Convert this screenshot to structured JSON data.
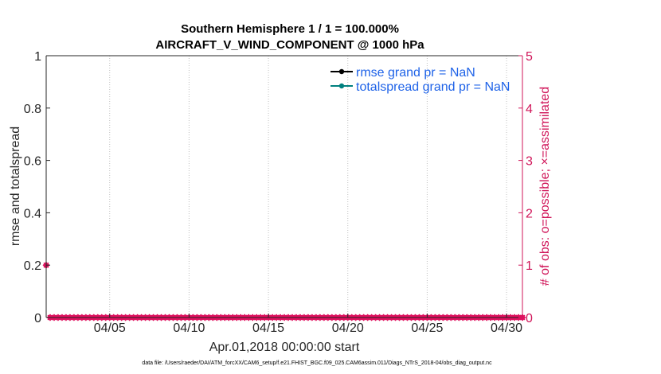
{
  "title_line1": "Southern Hemisphere 1 / 1 = 100.000%",
  "title_line2": "AIRCRAFT_V_WIND_COMPONENT @ 1000 hPa",
  "footer": "data file: /Users/raeder/DAI/ATM_forcXX/CAM6_setup/f.e21.FHIST_BGC.f09_025.CAM6assim.011/Diags_NTrS_2018-04/obs_diag_output.nc",
  "colors": {
    "left_axis": "#262626",
    "right_axis": "#d01559",
    "rmse": "#000000",
    "spread": "#00807f",
    "obs": "#e0115f",
    "legend_text": "#1f63e8"
  },
  "chart_data": {
    "type": "line",
    "xlabel": "Apr.01,2018 00:00:00 start",
    "ylabel": "rmse and totalspread",
    "y2label": "# of obs: o=possible; ×=assimilated",
    "xlim": [
      1,
      31
    ],
    "ylim": [
      0,
      1
    ],
    "y2lim": [
      0,
      5
    ],
    "x_ticks": [
      5,
      10,
      15,
      20,
      25,
      30
    ],
    "x_tick_labels": [
      "04/05",
      "04/10",
      "04/15",
      "04/20",
      "04/25",
      "04/30"
    ],
    "y_ticks": [
      0,
      0.2,
      0.4,
      0.6,
      0.8,
      1
    ],
    "y_tick_labels": [
      "0",
      "0.2",
      "0.4",
      "0.6",
      "0.8",
      "1"
    ],
    "y2_ticks": [
      0,
      1,
      2,
      3,
      4,
      5
    ],
    "y2_tick_labels": [
      "0",
      "1",
      "2",
      "3",
      "4",
      "5"
    ],
    "grid": "x",
    "legend_position": "top-right",
    "legend": [
      "rmse grand pr = NaN",
      "totalspread grand pr = NaN"
    ],
    "obs_possible": {
      "x": [
        1,
        1.25,
        1.5,
        1.75,
        2,
        2.25,
        2.5,
        2.75,
        3,
        3.25,
        3.5,
        3.75,
        4,
        4.25,
        4.5,
        4.75,
        5,
        5.25,
        5.5,
        5.75,
        6,
        6.25,
        6.5,
        6.75,
        7,
        7.25,
        7.5,
        7.75,
        8,
        8.25,
        8.5,
        8.75,
        9,
        9.25,
        9.5,
        9.75,
        10,
        10.25,
        10.5,
        10.75,
        11,
        11.25,
        11.5,
        11.75,
        12,
        12.25,
        12.5,
        12.75,
        13,
        13.25,
        13.5,
        13.75,
        14,
        14.25,
        14.5,
        14.75,
        15,
        15.25,
        15.5,
        15.75,
        16,
        16.25,
        16.5,
        16.75,
        17,
        17.25,
        17.5,
        17.75,
        18,
        18.25,
        18.5,
        18.75,
        19,
        19.25,
        19.5,
        19.75,
        20,
        20.25,
        20.5,
        20.75,
        21,
        21.25,
        21.5,
        21.75,
        22,
        22.25,
        22.5,
        22.75,
        23,
        23.25,
        23.5,
        23.75,
        24,
        24.25,
        24.5,
        24.75,
        25,
        25.25,
        25.5,
        25.75,
        26,
        26.25,
        26.5,
        26.75,
        27,
        27.25,
        27.5,
        27.75,
        28,
        28.25,
        28.5,
        28.75,
        29,
        29.25,
        29.5,
        29.75,
        30,
        30.25,
        30.5,
        30.75,
        31
      ],
      "y": [
        1,
        0,
        0,
        0,
        0,
        0,
        0,
        0,
        0,
        0,
        0,
        0,
        0,
        0,
        0,
        0,
        0,
        0,
        0,
        0,
        0,
        0,
        0,
        0,
        0,
        0,
        0,
        0,
        0,
        0,
        0,
        0,
        0,
        0,
        0,
        0,
        0,
        0,
        0,
        0,
        0,
        0,
        0,
        0,
        0,
        0,
        0,
        0,
        0,
        0,
        0,
        0,
        0,
        0,
        0,
        0,
        0,
        0,
        0,
        0,
        0,
        0,
        0,
        0,
        0,
        0,
        0,
        0,
        0,
        0,
        0,
        0,
        0,
        0,
        0,
        0,
        0,
        0,
        0,
        0,
        0,
        0,
        0,
        0,
        0,
        0,
        0,
        0,
        0,
        0,
        0,
        0,
        0,
        0,
        0,
        0,
        0,
        0,
        0,
        0,
        0,
        0,
        0,
        0,
        0,
        0,
        0,
        0,
        0,
        0,
        0,
        0,
        0,
        0,
        0,
        0,
        0,
        0,
        0,
        0,
        0
      ]
    }
  }
}
